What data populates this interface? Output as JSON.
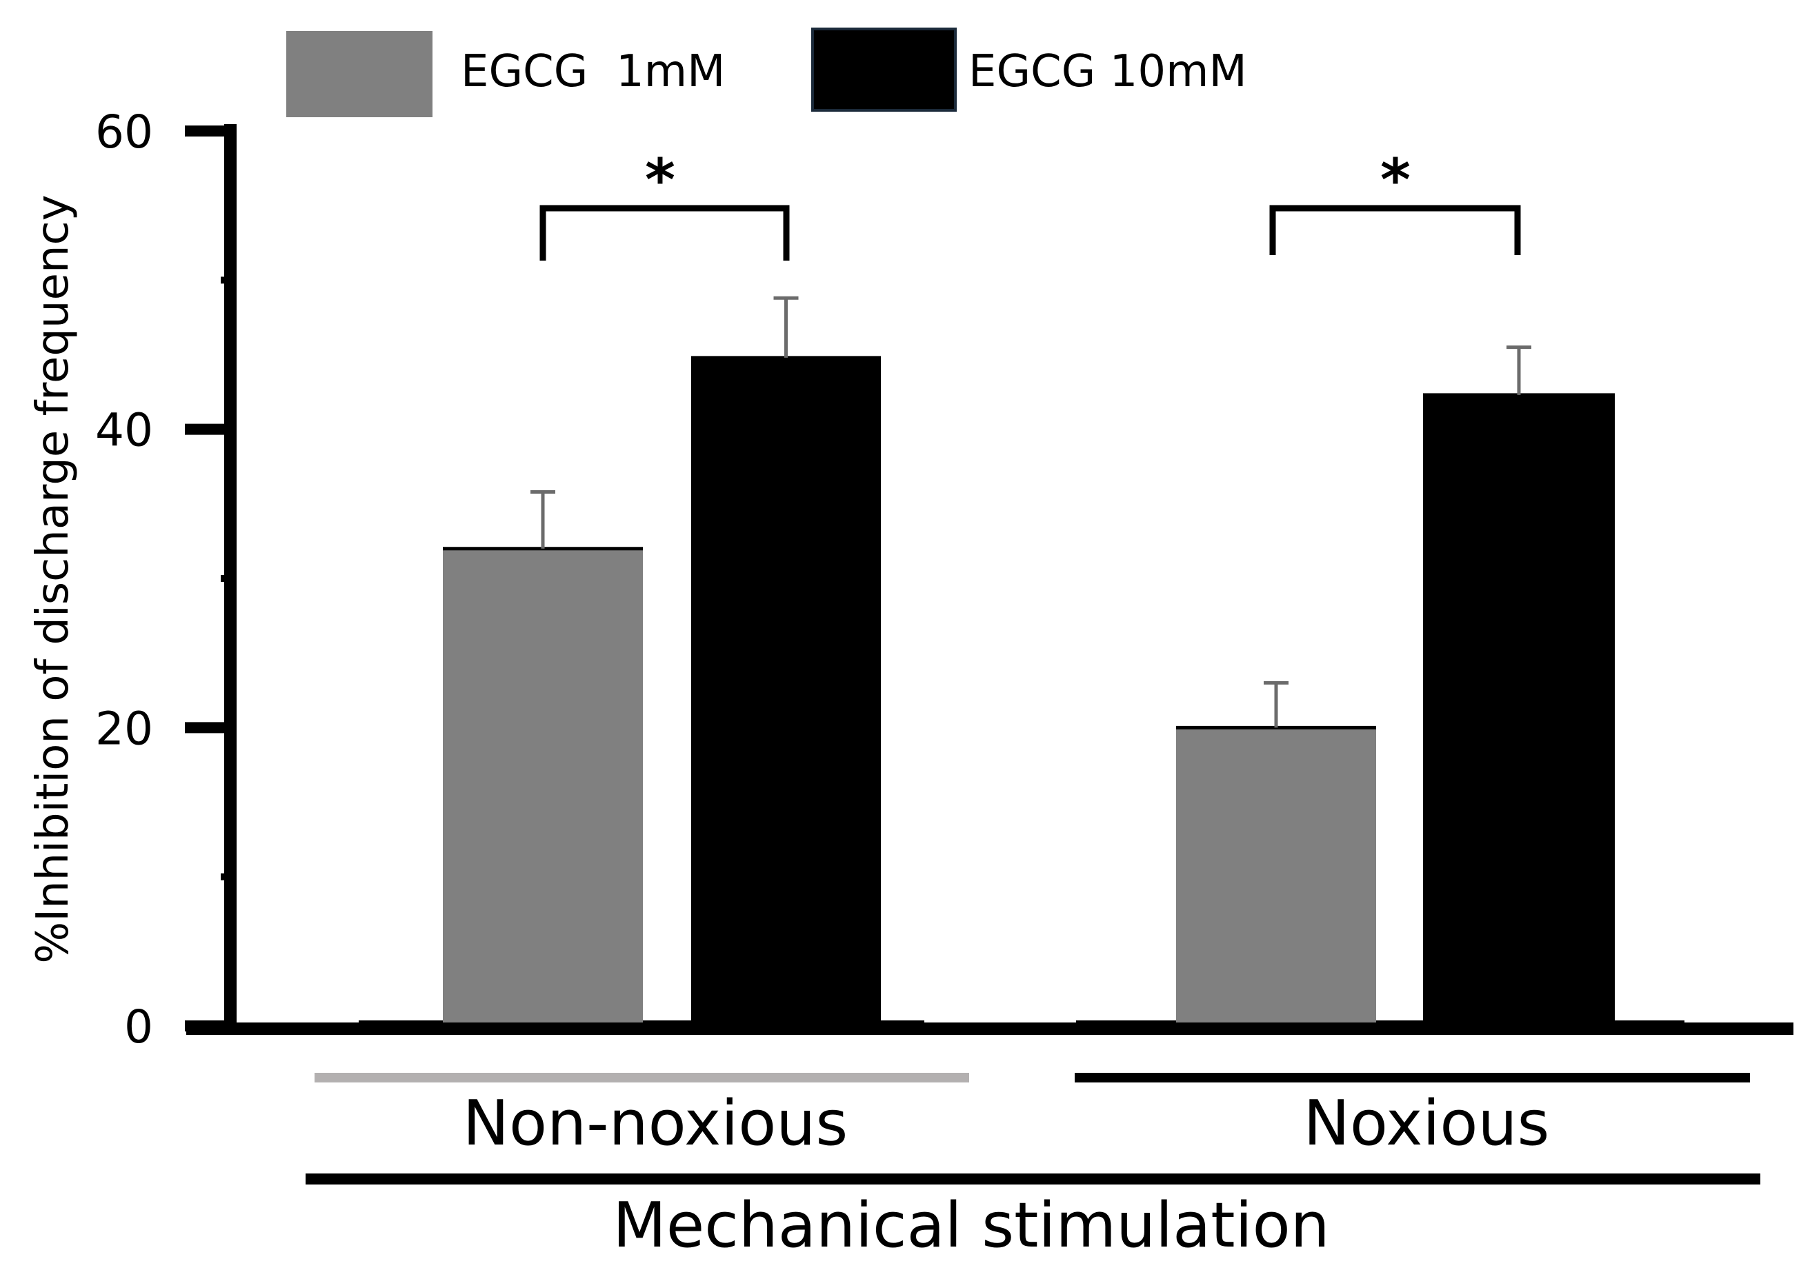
{
  "chart_data": {
    "type": "bar",
    "title": "",
    "ylabel": "%Inhibition of discharge frequency",
    "xlabel": "Mechanical stimulation",
    "ylim": [
      0,
      60
    ],
    "y_ticks": [
      0,
      20,
      40,
      60
    ],
    "y_tick_labels": [
      "0",
      "20",
      "40",
      "60"
    ],
    "categories": [
      "Non-noxious",
      "Noxious"
    ],
    "series": [
      {
        "name": "EGCG  1mM",
        "color": "#808080",
        "values": [
          32,
          20
        ],
        "errors": [
          3.8,
          3
        ]
      },
      {
        "name": "EGCG 10mM",
        "color": "#000000",
        "values": [
          44.8,
          42.3
        ],
        "errors": [
          4,
          3.2
        ]
      }
    ],
    "group_underline_colors": [
      "#b3b0b0",
      "#000000"
    ],
    "significance": [
      {
        "category_index": 0,
        "label": "*"
      },
      {
        "category_index": 1,
        "label": "*"
      }
    ],
    "legend_position": "top-left",
    "grid": false
  }
}
